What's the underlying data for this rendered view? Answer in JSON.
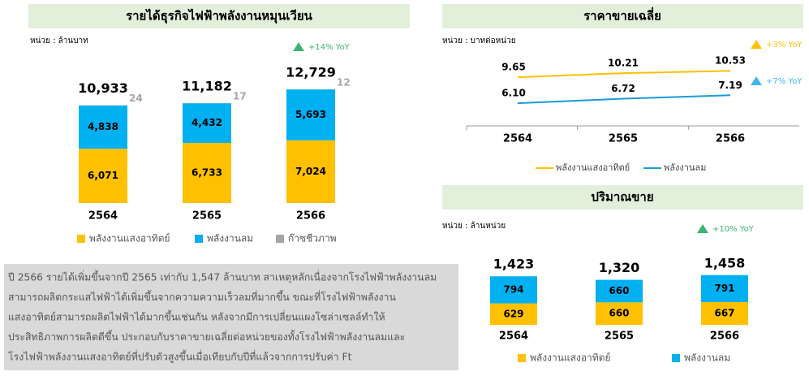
{
  "chart_data": [
    {
      "type": "bar",
      "title": "รายได้ธุรกิจไฟฟ้าพลังงานหมุนเวียน",
      "unit": "หน่วย : ล้านบาท",
      "annotations": [
        {
          "text": "+14% YoY",
          "color": "#3cb371"
        }
      ],
      "categories": [
        "2564",
        "2565",
        "2566"
      ],
      "series": [
        {
          "name": "พลังงานแสงอาทิตย์",
          "color": "#FFC000",
          "values": [
            6071,
            6733,
            7024
          ],
          "value_labels": [
            "6,071",
            "6,733",
            "7,024"
          ]
        },
        {
          "name": "พลังงานลม",
          "color": "#00B0F0",
          "values": [
            4838,
            4432,
            5693
          ],
          "value_labels": [
            "4,838",
            "4,432",
            "5,693"
          ]
        },
        {
          "name": "ก๊าซชีวภาพ",
          "color": "#A5A5A5",
          "values": [
            24,
            17,
            12
          ]
        }
      ],
      "totals": [
        10933,
        11182,
        12729
      ],
      "total_labels": [
        "10,933",
        "11,182",
        "12,729"
      ],
      "ylim": [
        0,
        14000
      ]
    },
    {
      "type": "line",
      "title": "ราคาขายเฉลี่ย",
      "unit": "หน่วย : บาทต่อหน่วย",
      "annotations": [
        {
          "text": "+3% YoY",
          "color": "#FFC000"
        },
        {
          "text": "+7% YoY",
          "color": "#3fb8e8"
        }
      ],
      "categories": [
        "2564",
        "2565",
        "2566"
      ],
      "series": [
        {
          "name": "พลังงานแสงอาทิตย์",
          "color": "#FFC000",
          "values": [
            9.65,
            10.21,
            10.53
          ]
        },
        {
          "name": "พลังงานลม",
          "color": "#1a9ad9",
          "values": [
            6.1,
            6.72,
            7.19
          ],
          "value_labels": [
            "6.10",
            "6.72",
            "7.19"
          ]
        }
      ],
      "ylim": [
        3,
        14
      ]
    },
    {
      "type": "bar",
      "title": "ปริมาณขาย",
      "unit": "หน่วย : ล้านหน่วย",
      "annotations": [
        {
          "text": "+10% YoY",
          "color": "#3cb371"
        }
      ],
      "categories": [
        "2564",
        "2565",
        "2566"
      ],
      "series": [
        {
          "name": "พลังงานแสงอาทิตย์",
          "color": "#FFC000",
          "values": [
            629,
            660,
            667
          ]
        },
        {
          "name": "พลังงานลม",
          "color": "#00B0F0",
          "values": [
            794,
            660,
            791
          ]
        }
      ],
      "totals": [
        1423,
        1320,
        1458
      ],
      "total_labels": [
        "1,423",
        "1,320",
        "1,458"
      ],
      "ylim": [
        0,
        2000
      ]
    }
  ],
  "note": [
    "ปี 2566 รายได้เพิ่มขึ้นจากปี 2565 เท่ากับ 1,547 ล้านบาท สาเหตุหลักเนื่องจากโรงไฟฟ้าพลังงานลม",
    "สามารถผลิตกระแสไฟฟ้าได้เพิ่มขึ้นจากความความเร็วลมที่มากขึ้น ขณะที่โรงไฟฟ้าพลังงาน",
    "แสงอาทิตย์สามารถผลิตไฟฟ้าได้มากขึ้นเช่นกัน หลังจากมีการเปลี่ยนแผงโซล่าเซลล์ทำให้",
    "ประสิทธิภาพการผลิตดีขึ้น ประกอบกับราคาขายเฉลี่ยต่อหน่วยของทั้งโรงไฟฟ้าพลังงานลมและ",
    "โรงไฟฟ้าพลังงานแสงอาทิตย์ที่ปรับตัวสูงขึ้นเมื่อเทียบกับปีที่แล้วจากการปรับค่า Ft"
  ]
}
